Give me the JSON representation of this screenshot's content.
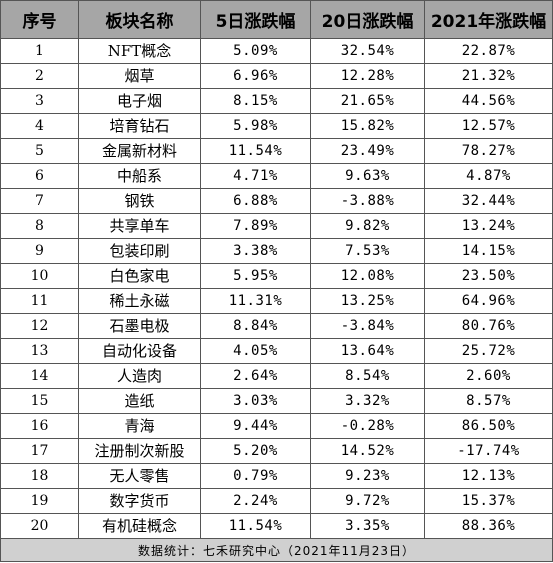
{
  "headers": [
    "序号",
    "板块名称",
    "5日涨跌幅",
    "20日涨跌幅",
    "2021年涨跌幅"
  ],
  "rows": [
    {
      "no": "1",
      "name": "NFT概念",
      "d5": "5.09%",
      "d20": "32.54%",
      "y2021": "22.87%"
    },
    {
      "no": "2",
      "name": "烟草",
      "d5": "6.96%",
      "d20": "12.28%",
      "y2021": "21.32%"
    },
    {
      "no": "3",
      "name": "电子烟",
      "d5": "8.15%",
      "d20": "21.65%",
      "y2021": "44.56%"
    },
    {
      "no": "4",
      "name": "培育钻石",
      "d5": "5.98%",
      "d20": "15.82%",
      "y2021": "12.57%"
    },
    {
      "no": "5",
      "name": "金属新材料",
      "d5": "11.54%",
      "d20": "23.49%",
      "y2021": "78.27%"
    },
    {
      "no": "6",
      "name": "中船系",
      "d5": "4.71%",
      "d20": "9.63%",
      "y2021": "4.87%"
    },
    {
      "no": "7",
      "name": "钢铁",
      "d5": "6.88%",
      "d20": "-3.88%",
      "y2021": "32.44%"
    },
    {
      "no": "8",
      "name": "共享单车",
      "d5": "7.89%",
      "d20": "9.82%",
      "y2021": "13.24%"
    },
    {
      "no": "9",
      "name": "包装印刷",
      "d5": "3.38%",
      "d20": "7.53%",
      "y2021": "14.15%"
    },
    {
      "no": "10",
      "name": "白色家电",
      "d5": "5.95%",
      "d20": "12.08%",
      "y2021": "23.50%"
    },
    {
      "no": "11",
      "name": "稀土永磁",
      "d5": "11.31%",
      "d20": "13.25%",
      "y2021": "64.96%"
    },
    {
      "no": "12",
      "name": "石墨电极",
      "d5": "8.84%",
      "d20": "-3.84%",
      "y2021": "80.76%"
    },
    {
      "no": "13",
      "name": "自动化设备",
      "d5": "4.05%",
      "d20": "13.64%",
      "y2021": "25.72%"
    },
    {
      "no": "14",
      "name": "人造肉",
      "d5": "2.64%",
      "d20": "8.54%",
      "y2021": "2.60%"
    },
    {
      "no": "15",
      "name": "造纸",
      "d5": "3.03%",
      "d20": "3.32%",
      "y2021": "8.57%"
    },
    {
      "no": "16",
      "name": "青海",
      "d5": "9.44%",
      "d20": "-0.28%",
      "y2021": "86.50%"
    },
    {
      "no": "17",
      "name": "注册制次新股",
      "d5": "5.20%",
      "d20": "14.52%",
      "y2021": "-17.74%"
    },
    {
      "no": "18",
      "name": "无人零售",
      "d5": "0.79%",
      "d20": "9.23%",
      "y2021": "12.13%"
    },
    {
      "no": "19",
      "name": "数字货币",
      "d5": "2.24%",
      "d20": "9.72%",
      "y2021": "15.37%"
    },
    {
      "no": "20",
      "name": "有机硅概念",
      "d5": "11.54%",
      "d20": "3.35%",
      "y2021": "88.36%"
    }
  ],
  "footer": "数据统计：七禾研究中心（2021年11月23日）",
  "colors": {
    "header_bg": "#a6a6a6",
    "footer_bg": "#d0d0d0",
    "border": "#555555"
  }
}
